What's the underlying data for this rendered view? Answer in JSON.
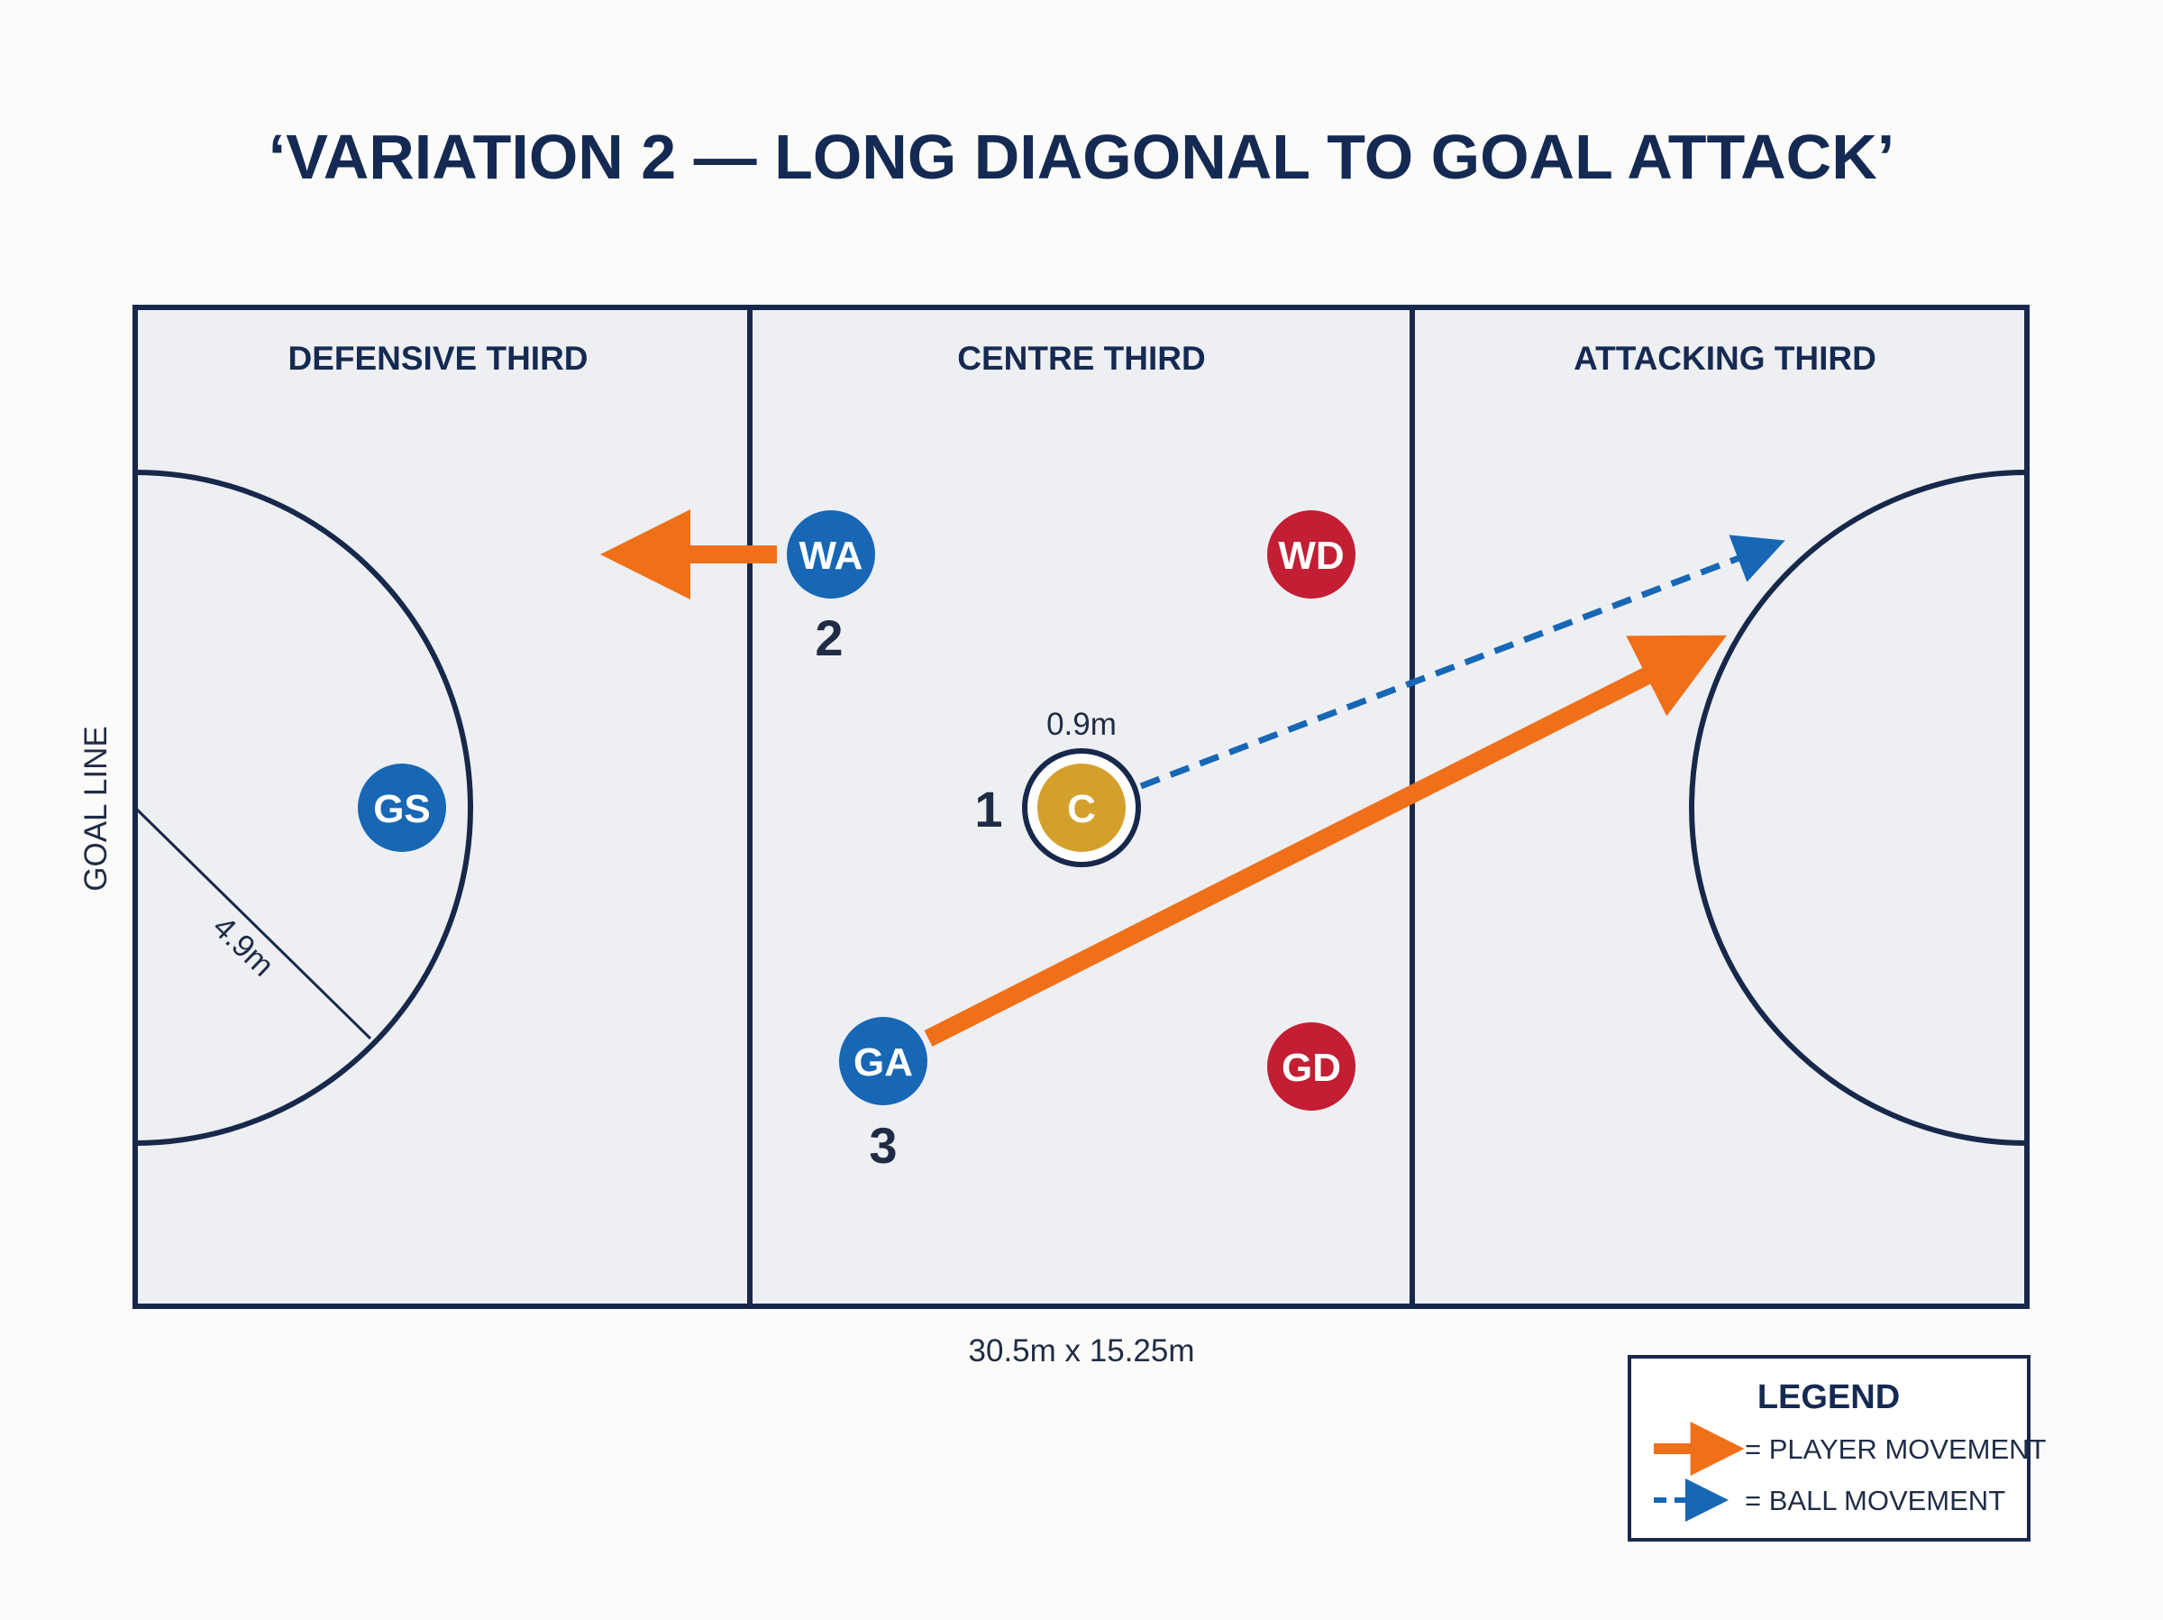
{
  "title": "‘VARIATION 2 — LONG DIAGONAL TO GOAL ATTACK’",
  "thirds": {
    "defensive": "DEFENSIVE THIRD",
    "centre": "CENTRE THIRD",
    "attacking": "ATTACKING THIRD"
  },
  "labels": {
    "goal_line": "GOAL LINE",
    "circle_radius": "4.9m",
    "centre_circle": "0.9m",
    "court_size": "30.5m x 15.25m"
  },
  "players": {
    "gs": "GS",
    "wa": "WA",
    "wd": "WD",
    "c": "C",
    "ga": "GA",
    "gd": "GD"
  },
  "steps": {
    "one": "1",
    "two": "2",
    "three": "3"
  },
  "legend": {
    "title": "LEGEND",
    "player_movement": "= PLAYER MOVEMENT",
    "ball_movement": "= BALL MOVEMENT"
  },
  "colors": {
    "court_line": "#17284b",
    "court_fill": "#eeeff3",
    "team_blue": "#1767b5",
    "opponent_red": "#c41e34",
    "centre_gold": "#d4a02c",
    "player_movement": "#f07019",
    "ball_movement": "#1767b5"
  }
}
